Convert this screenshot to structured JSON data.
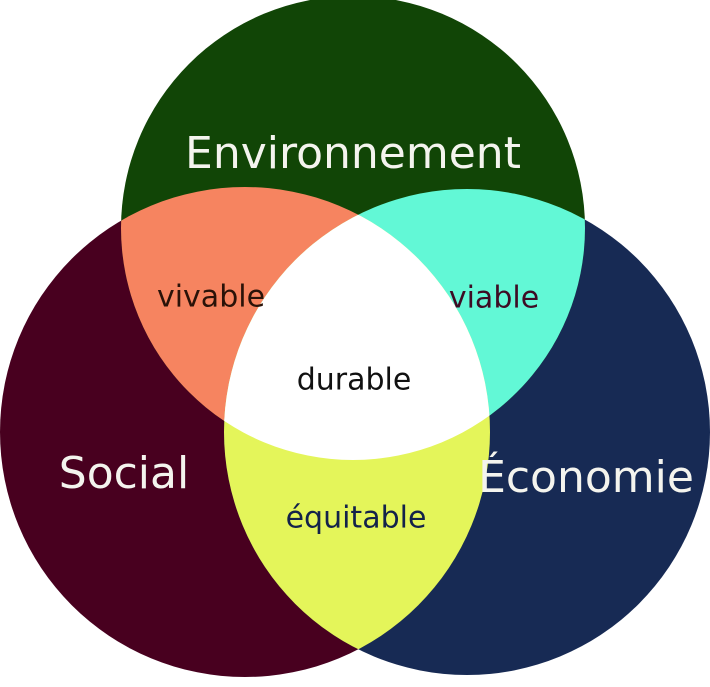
{
  "diagram": {
    "sets": {
      "environment": {
        "label": "Environnement",
        "color": "#114506"
      },
      "social": {
        "label": "Social",
        "color": "#48001f"
      },
      "economy": {
        "label": "Économie",
        "color": "#172a54"
      }
    },
    "intersections": {
      "environment_social": {
        "label": "vivable",
        "color": "#f68460",
        "text_color": "#2a1208"
      },
      "environment_economy": {
        "label": "viable",
        "color": "#62f8d6",
        "text_color": "#3d0c24"
      },
      "social_economy": {
        "label": "équitable",
        "color": "#e4f55a",
        "text_color": "#13224a"
      },
      "all": {
        "label": "durable",
        "color": "#ffffff",
        "text_color": "#111111"
      }
    }
  }
}
